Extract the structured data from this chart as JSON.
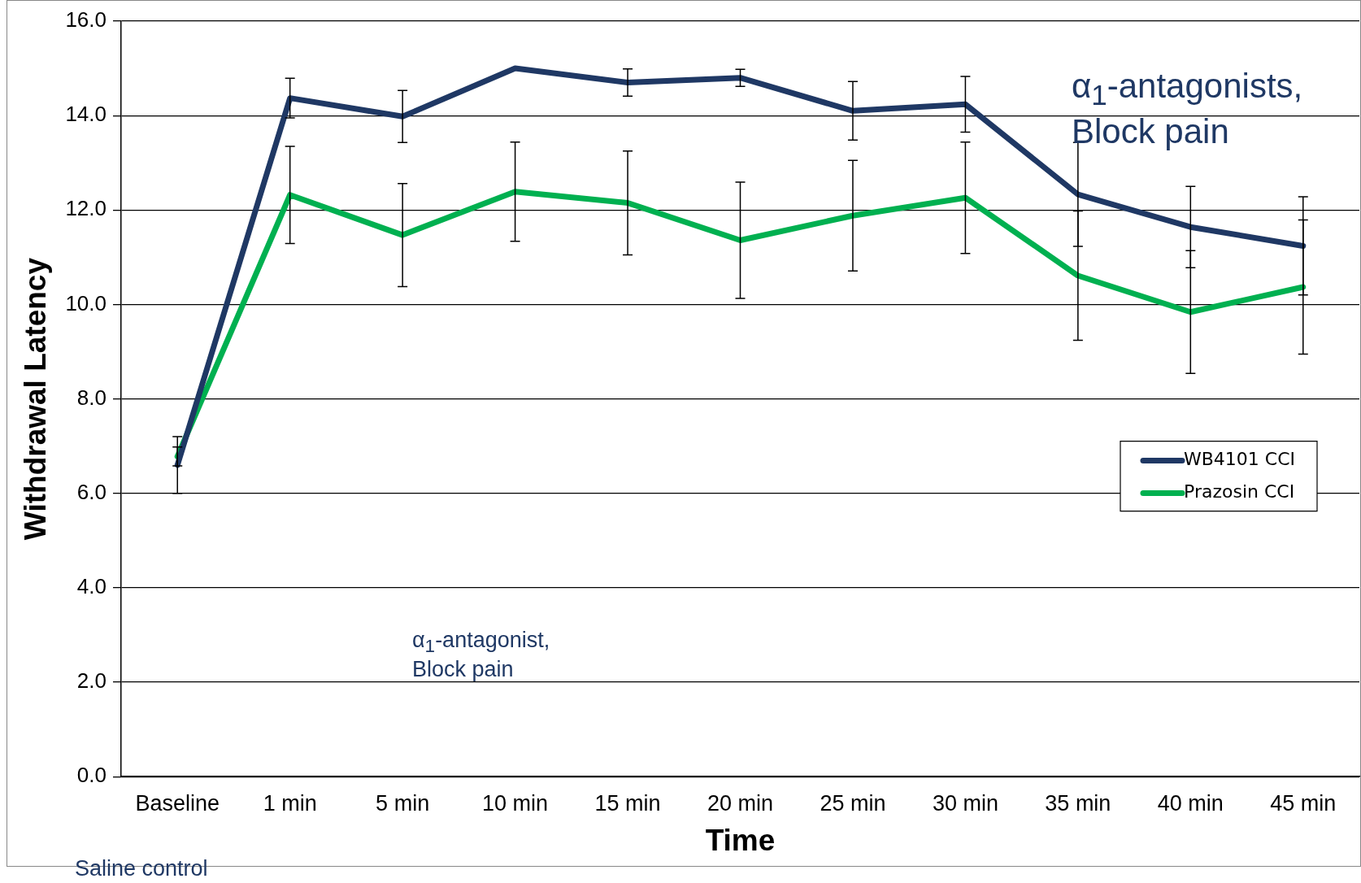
{
  "chart_data": {
    "type": "line",
    "xlabel": "Time",
    "ylabel": "Withdrawal Latency",
    "categories": [
      "Baseline",
      "1 min",
      "5 min",
      "10 min",
      "15 min",
      "20 min",
      "25 min",
      "30 min",
      "35 min",
      "40 min",
      "45 min"
    ],
    "series": [
      {
        "name": "WB4101 CCI",
        "color": "#1f3864",
        "values": [
          6.6,
          14.37,
          13.98,
          15.0,
          14.7,
          14.8,
          14.1,
          14.24,
          12.33,
          11.64,
          11.24
        ],
        "errors": [
          0.6,
          0.42,
          0.55,
          null,
          0.29,
          0.18,
          0.62,
          0.59,
          1.1,
          0.86,
          1.04
        ]
      },
      {
        "name": "Prazosin CCI",
        "color": "#00b050",
        "values": [
          6.78,
          12.32,
          11.47,
          12.39,
          12.15,
          11.36,
          11.88,
          12.26,
          10.61,
          9.84,
          10.37
        ],
        "errors": [
          0.2,
          1.03,
          1.09,
          1.05,
          1.1,
          1.23,
          1.17,
          1.18,
          1.37,
          1.3,
          1.42
        ]
      }
    ],
    "ylim": [
      0,
      16
    ],
    "yticks": [
      {
        "value": 0,
        "label": "0.0"
      },
      {
        "value": 2,
        "label": "2.0"
      },
      {
        "value": 4,
        "label": "4.0"
      },
      {
        "value": 6,
        "label": "6.0"
      },
      {
        "value": 8,
        "label": "8.0"
      },
      {
        "value": 10,
        "label": "10.0"
      },
      {
        "value": 12,
        "label": "12.0"
      },
      {
        "value": 14,
        "label": "14.0"
      },
      {
        "value": 16,
        "label": "16.0"
      }
    ],
    "grid": "y",
    "legend": "right",
    "marker": "none",
    "line_style": "solid",
    "annotations": [
      "α$_{1}$-antagonists, Block pain",
      "α$_{1}$-antagonist, Block pain",
      "Saline control"
    ]
  }
}
